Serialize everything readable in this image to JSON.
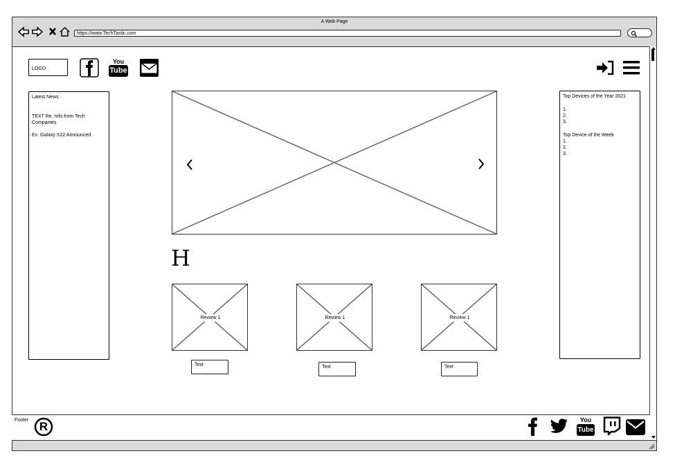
{
  "browser": {
    "window_title": "A Web Page",
    "url": "https://www.TechTastic.com"
  },
  "header": {
    "logo_text": "LOGO",
    "social_icons": [
      "facebook-icon",
      "youtube-icon",
      "mail-icon"
    ],
    "right_icons": [
      "login-icon",
      "hamburger-menu-icon"
    ],
    "youtube_you": "You",
    "youtube_tube": "Tube"
  },
  "left_sidebar": {
    "title": "Latest  News",
    "line1": "TEXT Re. Info from Tech Companies",
    "line2": "Ex. Galaxy S22 Announced"
  },
  "right_sidebar": {
    "title1": "Top Devices of the Year 2021",
    "list1": [
      "1.",
      "2.",
      "3."
    ],
    "title2": "Top Device of the Week",
    "list2": [
      "1.",
      "2.",
      "3."
    ]
  },
  "carousel": {
    "prev_arrow": "‹",
    "next_arrow": "›"
  },
  "main": {
    "heading": "H",
    "reviews": [
      {
        "label": "Review 1",
        "caption": "Text"
      },
      {
        "label": "Review 1",
        "caption": "Text"
      },
      {
        "label": "Review 1",
        "caption": "Text"
      }
    ]
  },
  "footer": {
    "label": "Footer",
    "registered_mark": "®",
    "social_icons": [
      "facebook-icon",
      "twitter-icon",
      "youtube-icon",
      "twitch-icon",
      "mail-icon"
    ],
    "youtube_you": "You",
    "youtube_tube": "Tube"
  }
}
